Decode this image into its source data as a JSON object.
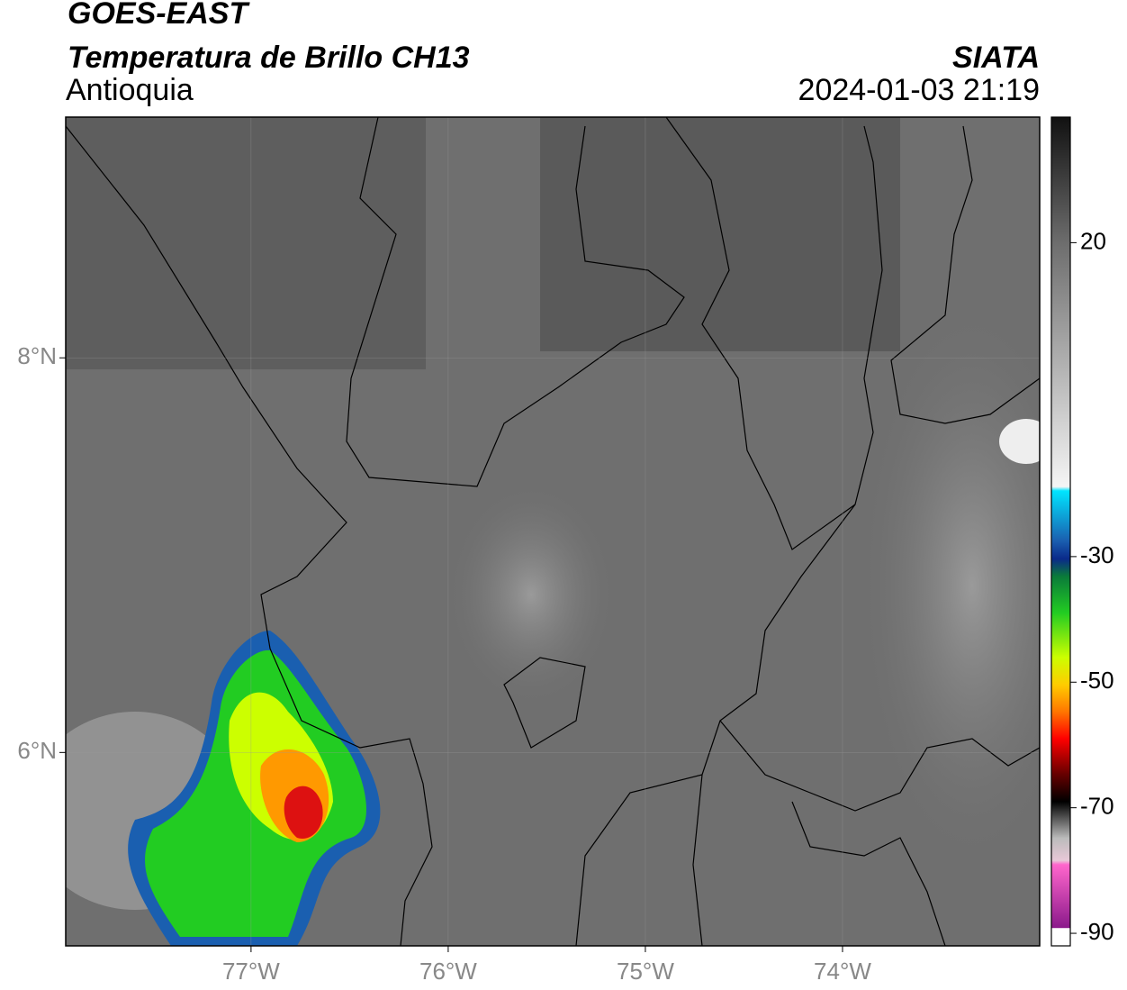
{
  "header": {
    "satellite": "GOES-EAST",
    "product": "Temperatura de Brillo CH13",
    "region": "Antioquia",
    "source": "SIATA",
    "datetime": "2024-01-03 21:19"
  },
  "map": {
    "lonlim": [
      -77.94,
      -73.0
    ],
    "latlim": [
      5.02,
      9.22
    ],
    "lonticks": [
      {
        "value": -77,
        "label": "77°W"
      },
      {
        "value": -76,
        "label": "76°W"
      },
      {
        "value": -75,
        "label": "75°W"
      },
      {
        "value": -74,
        "label": "74°W"
      }
    ],
    "latticks": [
      {
        "value": 8,
        "label": "8°N"
      },
      {
        "value": 6,
        "label": "6°N"
      }
    ]
  },
  "colorbar": {
    "lim": [
      -92,
      40
    ],
    "ticks": [
      20,
      -30,
      -50,
      -70,
      -90
    ]
  }
}
